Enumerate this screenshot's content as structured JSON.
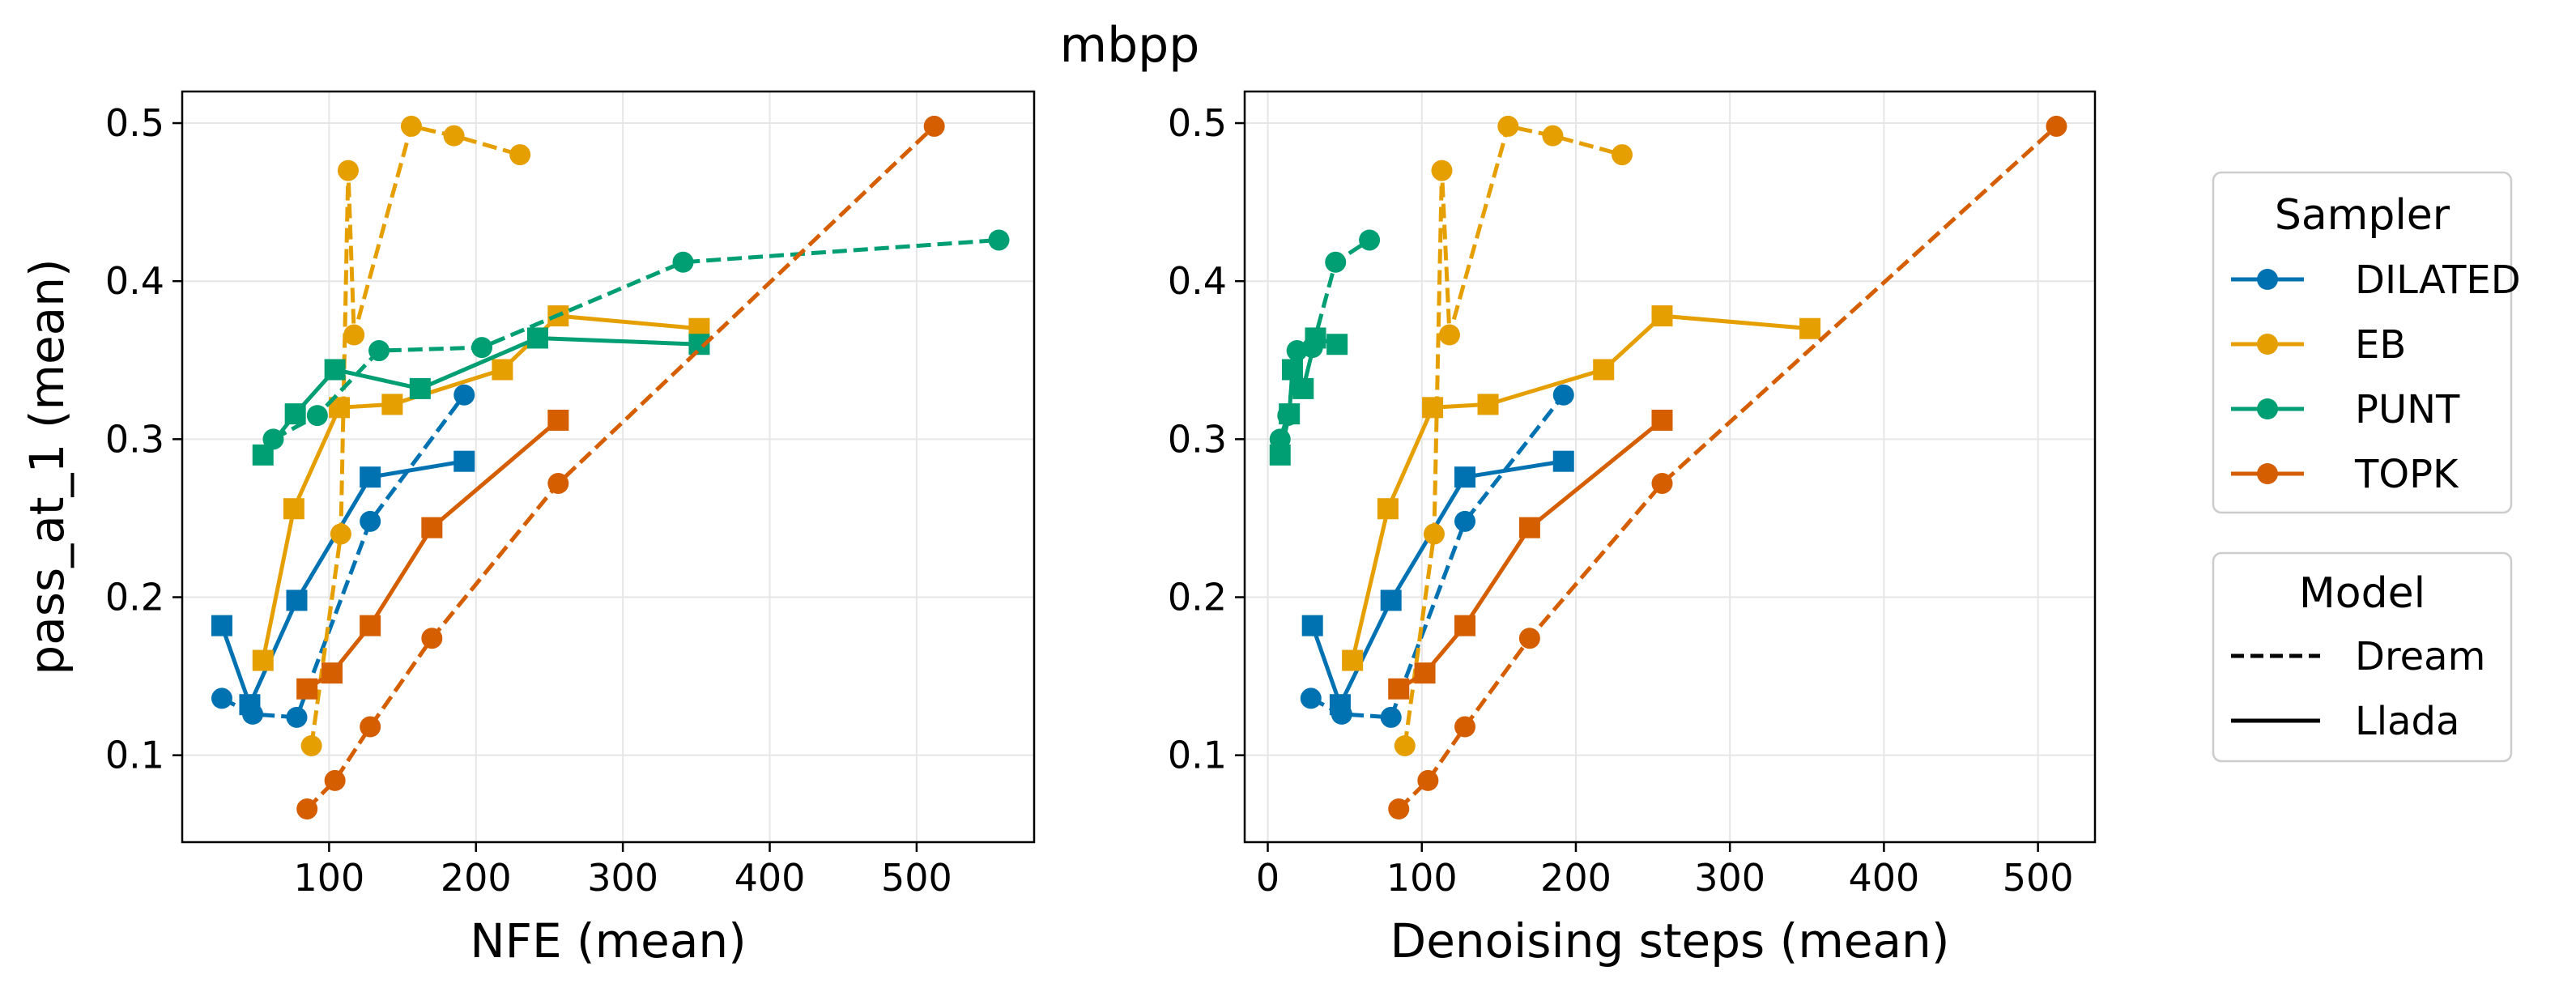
{
  "suptitle": "mbpp",
  "colors": {
    "DILATED": "#0072b2",
    "EB": "#e69f00",
    "PUNT": "#009e73",
    "TOPK": "#d55e00",
    "grid": "#e6e6e6"
  },
  "legend_sampler": {
    "title": "Sampler",
    "items": [
      "DILATED",
      "EB",
      "PUNT",
      "TOPK"
    ]
  },
  "legend_model": {
    "title": "Model",
    "items": [
      {
        "label": "Dream",
        "style": "dashed"
      },
      {
        "label": "Llada",
        "style": "solid"
      }
    ]
  },
  "chart_data": [
    {
      "type": "line",
      "title": "",
      "xlabel": "NFE (mean)",
      "ylabel": "pass_at_1 (mean)",
      "xlim": [
        0,
        580
      ],
      "ylim": [
        0.045,
        0.52
      ],
      "xticks": [
        100,
        200,
        300,
        400,
        500
      ],
      "yticks": [
        0.1,
        0.2,
        0.3,
        0.4,
        0.5
      ],
      "xtick_labels": [
        "100",
        "200",
        "300",
        "400",
        "500"
      ],
      "ytick_labels": [
        "0.1",
        "0.2",
        "0.3",
        "0.4",
        "0.5"
      ],
      "legend": "right",
      "series": [
        {
          "sampler": "DILATED",
          "model": "Dream",
          "marker": "circle",
          "points": [
            [
              27,
              0.136
            ],
            [
              48,
              0.126
            ],
            [
              78,
              0.124
            ],
            [
              128,
              0.248
            ],
            [
              192,
              0.328
            ]
          ]
        },
        {
          "sampler": "DILATED",
          "model": "Llada",
          "marker": "square",
          "points": [
            [
              27,
              0.182
            ],
            [
              46,
              0.132
            ],
            [
              78,
              0.198
            ],
            [
              128,
              0.276
            ],
            [
              192,
              0.286
            ]
          ]
        },
        {
          "sampler": "EB",
          "model": "Dream",
          "marker": "circle",
          "points": [
            [
              88,
              0.106
            ],
            [
              108,
              0.24
            ],
            [
              113,
              0.47
            ],
            [
              117,
              0.366
            ],
            [
              156,
              0.498
            ],
            [
              185,
              0.492
            ],
            [
              230,
              0.48
            ]
          ]
        },
        {
          "sampler": "EB",
          "model": "Llada",
          "marker": "square",
          "points": [
            [
              55,
              0.16
            ],
            [
              76,
              0.256
            ],
            [
              107,
              0.32
            ],
            [
              143,
              0.322
            ],
            [
              218,
              0.344
            ],
            [
              256,
              0.378
            ],
            [
              352,
              0.37
            ]
          ]
        },
        {
          "sampler": "PUNT",
          "model": "Dream",
          "marker": "circle",
          "points": [
            [
              62,
              0.3
            ],
            [
              92,
              0.315
            ],
            [
              134,
              0.356
            ],
            [
              204,
              0.358
            ],
            [
              341,
              0.412
            ],
            [
              556,
              0.426
            ]
          ]
        },
        {
          "sampler": "PUNT",
          "model": "Llada",
          "marker": "square",
          "points": [
            [
              55,
              0.29
            ],
            [
              77,
              0.316
            ],
            [
              104,
              0.344
            ],
            [
              162,
              0.332
            ],
            [
              242,
              0.364
            ],
            [
              352,
              0.36
            ]
          ]
        },
        {
          "sampler": "TOPK",
          "model": "Dream",
          "marker": "circle",
          "points": [
            [
              85,
              0.066
            ],
            [
              104,
              0.084
            ],
            [
              128,
              0.118
            ],
            [
              170,
              0.174
            ],
            [
              256,
              0.272
            ],
            [
              512,
              0.498
            ]
          ]
        },
        {
          "sampler": "TOPK",
          "model": "Llada",
          "marker": "square",
          "points": [
            [
              85,
              0.142
            ],
            [
              102,
              0.152
            ],
            [
              128,
              0.182
            ],
            [
              170,
              0.244
            ],
            [
              256,
              0.312
            ]
          ]
        }
      ]
    },
    {
      "type": "line",
      "title": "",
      "xlabel": "Denoising steps (mean)",
      "ylabel": "",
      "xlim": [
        -15,
        537
      ],
      "ylim": [
        0.045,
        0.52
      ],
      "xticks": [
        0,
        100,
        200,
        300,
        400,
        500
      ],
      "yticks": [
        0.1,
        0.2,
        0.3,
        0.4,
        0.5
      ],
      "xtick_labels": [
        "0",
        "100",
        "200",
        "300",
        "400",
        "500"
      ],
      "ytick_labels": [
        "0.1",
        "0.2",
        "0.3",
        "0.4",
        "0.5"
      ],
      "legend": "right",
      "series": [
        {
          "sampler": "DILATED",
          "model": "Dream",
          "marker": "circle",
          "points": [
            [
              28,
              0.136
            ],
            [
              48,
              0.126
            ],
            [
              80,
              0.124
            ],
            [
              128,
              0.248
            ],
            [
              192,
              0.328
            ]
          ]
        },
        {
          "sampler": "DILATED",
          "model": "Llada",
          "marker": "square",
          "points": [
            [
              29,
              0.182
            ],
            [
              47,
              0.132
            ],
            [
              80,
              0.198
            ],
            [
              128,
              0.276
            ],
            [
              192,
              0.286
            ]
          ]
        },
        {
          "sampler": "EB",
          "model": "Dream",
          "marker": "circle",
          "points": [
            [
              89,
              0.106
            ],
            [
              108,
              0.24
            ],
            [
              113,
              0.47
            ],
            [
              118,
              0.366
            ],
            [
              156,
              0.498
            ],
            [
              185,
              0.492
            ],
            [
              230,
              0.48
            ]
          ]
        },
        {
          "sampler": "EB",
          "model": "Llada",
          "marker": "square",
          "points": [
            [
              55,
              0.16
            ],
            [
              78,
              0.256
            ],
            [
              107,
              0.32
            ],
            [
              143,
              0.322
            ],
            [
              218,
              0.344
            ],
            [
              256,
              0.378
            ],
            [
              352,
              0.37
            ]
          ]
        },
        {
          "sampler": "PUNT",
          "model": "Dream",
          "marker": "circle",
          "points": [
            [
              8,
              0.3
            ],
            [
              13,
              0.315
            ],
            [
              19,
              0.356
            ],
            [
              29,
              0.358
            ],
            [
              44,
              0.412
            ],
            [
              66,
              0.426
            ]
          ]
        },
        {
          "sampler": "PUNT",
          "model": "Llada",
          "marker": "square",
          "points": [
            [
              8,
              0.29
            ],
            [
              14,
              0.316
            ],
            [
              16,
              0.344
            ],
            [
              23,
              0.332
            ],
            [
              31,
              0.364
            ],
            [
              45,
              0.36
            ]
          ]
        },
        {
          "sampler": "TOPK",
          "model": "Dream",
          "marker": "circle",
          "points": [
            [
              85,
              0.066
            ],
            [
              104,
              0.084
            ],
            [
              128,
              0.118
            ],
            [
              170,
              0.174
            ],
            [
              256,
              0.272
            ],
            [
              512,
              0.498
            ]
          ]
        },
        {
          "sampler": "TOPK",
          "model": "Llada",
          "marker": "square",
          "points": [
            [
              85,
              0.142
            ],
            [
              102,
              0.152
            ],
            [
              128,
              0.182
            ],
            [
              170,
              0.244
            ],
            [
              256,
              0.312
            ]
          ]
        }
      ]
    }
  ]
}
